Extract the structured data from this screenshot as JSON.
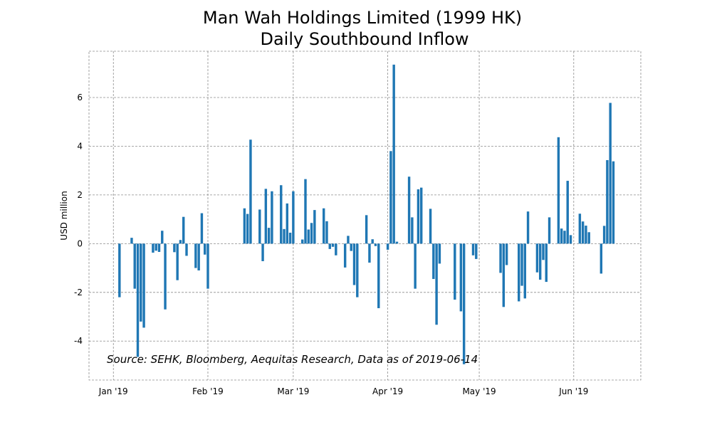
{
  "chart_data": {
    "type": "bar",
    "title": [
      "Man Wah Holdings Limited (1999 HK)",
      "Daily Southbound Inflow"
    ],
    "xlabel": "",
    "ylabel": "USD million",
    "ylim": [
      -5.6,
      7.9
    ],
    "xlim": [
      "2018-12-24",
      "2019-06-23"
    ],
    "grid": true,
    "bar_color": "#1f77b4",
    "y_ticks": [
      -4,
      -2,
      0,
      2,
      4,
      6
    ],
    "y_tick_labels": [
      "-4",
      "-2",
      "0",
      "2",
      "4",
      "6"
    ],
    "x_ticks": [
      "2019-01-01",
      "2019-02-01",
      "2019-03-01",
      "2019-04-01",
      "2019-05-01",
      "2019-06-01"
    ],
    "x_tick_labels": [
      "Jan '19",
      "Feb '19",
      "Mar '19",
      "Apr '19",
      "May '19",
      "Jun '19"
    ],
    "annotation": "Source: SEHK, Bloomberg, Aequitas Research, Data as of 2019-06-14",
    "series": [
      {
        "name": "Daily Southbound Inflow",
        "x": [
          "2019-01-03",
          "2019-01-07",
          "2019-01-08",
          "2019-01-09",
          "2019-01-10",
          "2019-01-11",
          "2019-01-14",
          "2019-01-15",
          "2019-01-16",
          "2019-01-17",
          "2019-01-18",
          "2019-01-21",
          "2019-01-22",
          "2019-01-23",
          "2019-01-24",
          "2019-01-25",
          "2019-01-28",
          "2019-01-29",
          "2019-01-30",
          "2019-01-31",
          "2019-02-01",
          "2019-02-13",
          "2019-02-14",
          "2019-02-15",
          "2019-02-18",
          "2019-02-19",
          "2019-02-20",
          "2019-02-21",
          "2019-02-22",
          "2019-02-25",
          "2019-02-26",
          "2019-02-27",
          "2019-02-28",
          "2019-03-01",
          "2019-03-04",
          "2019-03-05",
          "2019-03-06",
          "2019-03-07",
          "2019-03-08",
          "2019-03-11",
          "2019-03-12",
          "2019-03-13",
          "2019-03-14",
          "2019-03-15",
          "2019-03-18",
          "2019-03-19",
          "2019-03-20",
          "2019-03-21",
          "2019-03-22",
          "2019-03-25",
          "2019-03-26",
          "2019-03-27",
          "2019-03-28",
          "2019-03-29",
          "2019-04-01",
          "2019-04-02",
          "2019-04-03",
          "2019-04-04",
          "2019-04-08",
          "2019-04-09",
          "2019-04-10",
          "2019-04-11",
          "2019-04-12",
          "2019-04-15",
          "2019-04-16",
          "2019-04-17",
          "2019-04-18",
          "2019-04-23",
          "2019-04-25",
          "2019-04-26",
          "2019-04-29",
          "2019-04-30",
          "2019-05-08",
          "2019-05-09",
          "2019-05-10",
          "2019-05-14",
          "2019-05-15",
          "2019-05-16",
          "2019-05-17",
          "2019-05-20",
          "2019-05-21",
          "2019-05-22",
          "2019-05-23",
          "2019-05-24",
          "2019-05-27",
          "2019-05-28",
          "2019-05-29",
          "2019-05-30",
          "2019-05-31",
          "2019-06-03",
          "2019-06-04",
          "2019-06-05",
          "2019-06-06",
          "2019-06-10",
          "2019-06-11",
          "2019-06-12",
          "2019-06-13",
          "2019-06-14"
        ],
        "values": [
          -2.2,
          0.24,
          -1.85,
          -4.65,
          -3.2,
          -3.45,
          -0.37,
          -0.29,
          -0.34,
          0.53,
          -2.7,
          -0.35,
          -1.5,
          0.15,
          1.1,
          -0.5,
          -1.0,
          -1.1,
          1.25,
          -0.45,
          -1.85,
          1.45,
          1.22,
          4.27,
          1.4,
          -0.72,
          2.25,
          0.65,
          2.15,
          2.4,
          0.6,
          1.65,
          0.45,
          2.15,
          0.17,
          2.65,
          0.58,
          0.85,
          1.38,
          1.45,
          0.92,
          -0.22,
          -0.13,
          -0.48,
          -0.98,
          0.32,
          -0.3,
          -1.7,
          -2.2,
          1.17,
          -0.78,
          0.18,
          -0.1,
          -2.65,
          -0.25,
          3.8,
          7.35,
          0.08,
          2.75,
          1.08,
          -1.85,
          2.23,
          2.3,
          1.43,
          -1.45,
          -3.33,
          -0.82,
          -2.3,
          -2.78,
          -4.95,
          -0.48,
          -0.63,
          -1.2,
          -2.6,
          -0.88,
          -2.37,
          -1.73,
          -2.25,
          1.32,
          -1.18,
          -1.48,
          -0.67,
          -1.57,
          1.08,
          4.37,
          0.62,
          0.53,
          2.58,
          0.35,
          1.23,
          0.91,
          0.74,
          0.47,
          -1.23,
          0.73,
          3.43,
          5.78,
          3.38
        ]
      }
    ]
  }
}
